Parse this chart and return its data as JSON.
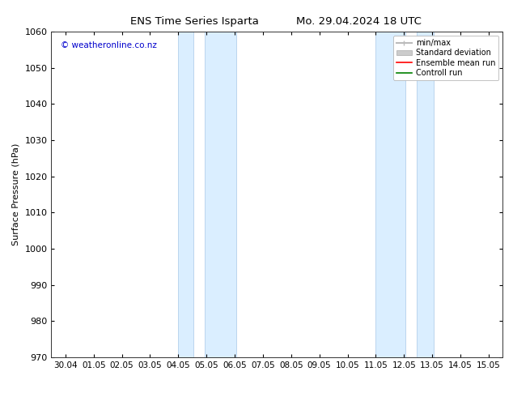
{
  "title_left": "ENS Time Series Isparta",
  "title_right": "Mo. 29.04.2024 18 UTC",
  "ylabel": "Surface Pressure (hPa)",
  "ylim": [
    970,
    1060
  ],
  "yticks": [
    970,
    980,
    990,
    1000,
    1010,
    1020,
    1030,
    1040,
    1050,
    1060
  ],
  "xtick_labels": [
    "30.04",
    "01.05",
    "02.05",
    "03.05",
    "04.05",
    "05.05",
    "06.05",
    "07.05",
    "08.05",
    "09.05",
    "10.05",
    "11.05",
    "12.05",
    "13.05",
    "14.05",
    "15.05"
  ],
  "xtick_positions": [
    0,
    1,
    2,
    3,
    4,
    5,
    6,
    7,
    8,
    9,
    10,
    11,
    12,
    13,
    14,
    15
  ],
  "shade_bands": [
    {
      "xmin": 4.0,
      "xmax": 4.5,
      "xmin2": 5.0,
      "xmax2": 6.0
    },
    {
      "xmin": 11.0,
      "xmax": 12.0,
      "xmin2": 12.5,
      "xmax2": 13.0
    }
  ],
  "shade_color": "#daeeff",
  "shade_edge_color": "#a8c8e8",
  "copyright_text": "© weatheronline.co.nz",
  "copyright_color": "#0000cc",
  "legend_items": [
    {
      "label": "min/max",
      "color": "#bbbbbb",
      "lw": 1.5
    },
    {
      "label": "Standard deviation",
      "color": "#cccccc",
      "lw": 6
    },
    {
      "label": "Ensemble mean run",
      "color": "#ff0000",
      "lw": 1.2
    },
    {
      "label": "Controll run",
      "color": "#008000",
      "lw": 1.2
    }
  ],
  "bg_color": "#ffffff",
  "font_size": 8,
  "title_font_size": 9.5
}
